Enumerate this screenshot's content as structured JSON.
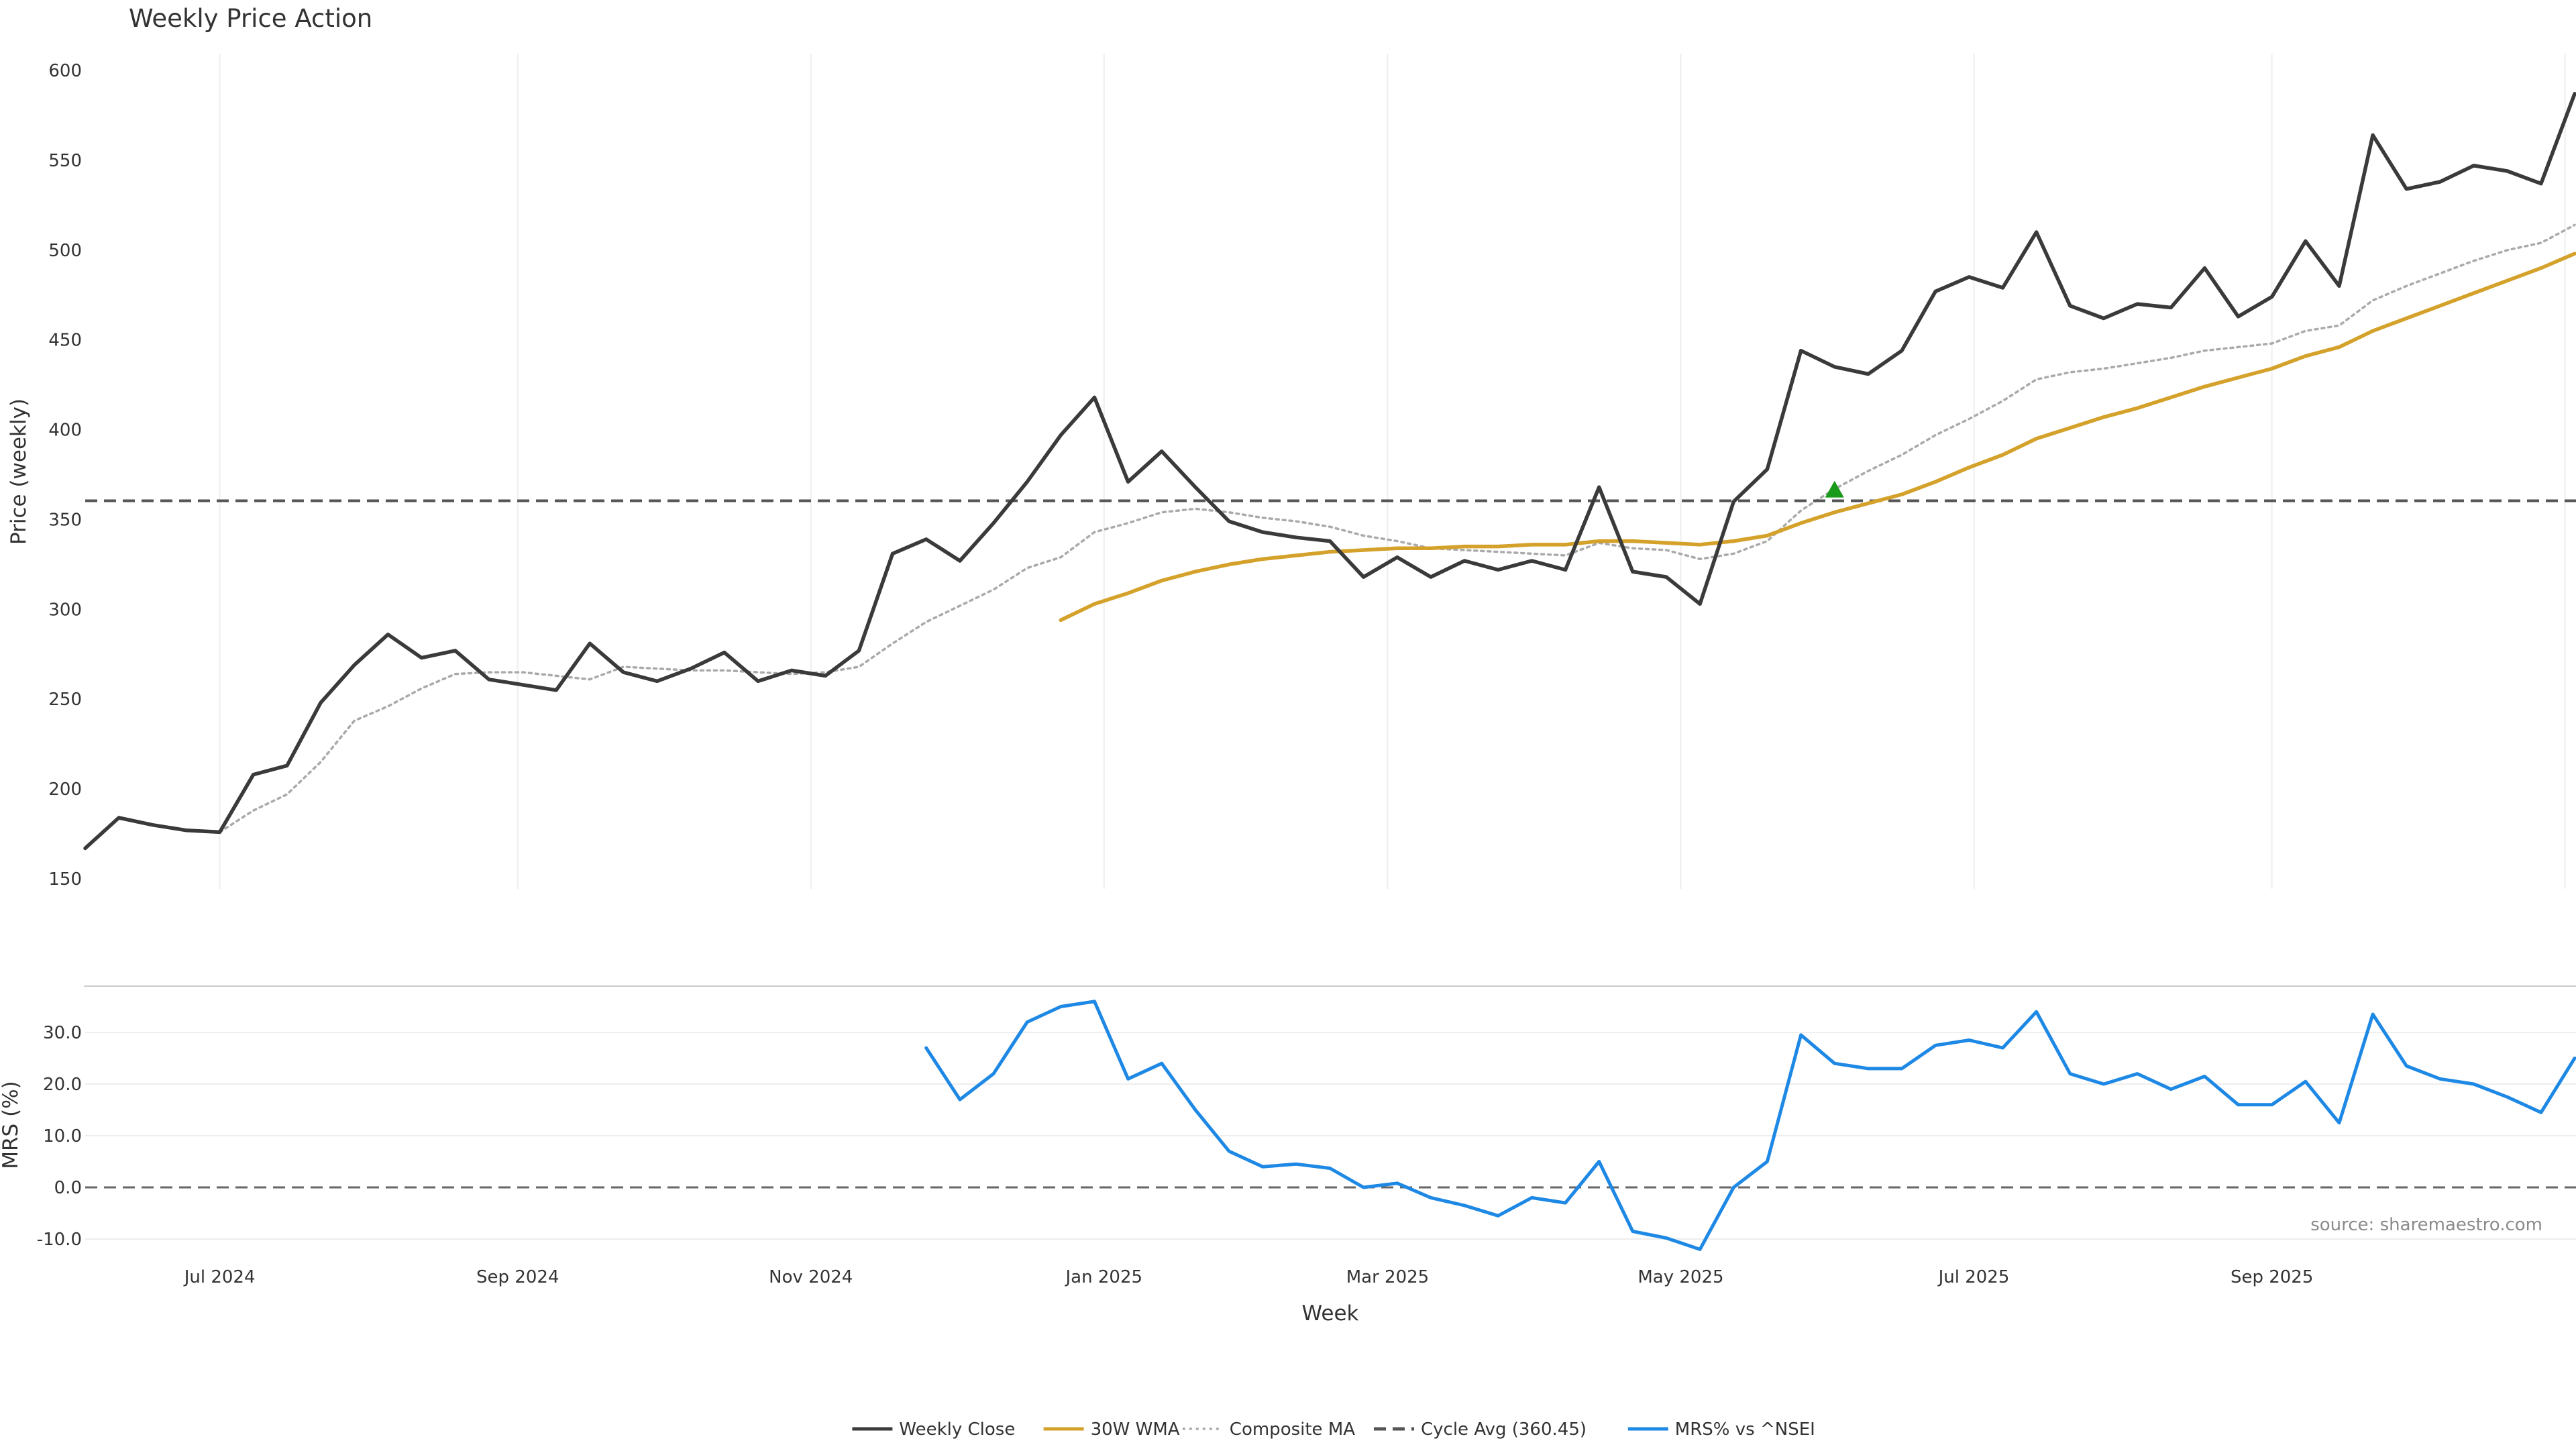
{
  "colors": {
    "weekly_close": "#3a3a3a",
    "wma30": "#d4a12a",
    "composite_ma": "#aaaaaa",
    "cycle_avg": "#555555",
    "mrs": "#1e88e5",
    "signal_marker": "#1a9a1a",
    "grid": "#eeeeee"
  },
  "source_text": "source: sharemaestro.com",
  "chart_data": [
    {
      "id": "price",
      "type": "line",
      "title": "Weekly Price Action",
      "ylabel": "Price (weekly)",
      "ylim": [
        150,
        610
      ],
      "yticks": [
        150,
        200,
        250,
        300,
        350,
        400,
        450,
        500,
        550,
        600
      ],
      "grid": "vertical",
      "x_start": "2024-06-03",
      "x_step_days": 7,
      "series": [
        {
          "name": "Weekly Close",
          "key": "weekly_close",
          "style": "solid",
          "values": [
            167,
            184,
            180,
            177,
            176,
            208,
            213,
            248,
            269,
            286,
            273,
            277,
            261,
            258,
            255,
            281,
            265,
            260,
            267,
            276,
            260,
            266,
            263,
            277,
            331,
            339,
            327,
            348,
            371,
            397,
            418,
            371,
            388,
            368,
            349,
            343,
            340,
            338,
            318,
            329,
            318,
            327,
            322,
            327,
            322,
            368,
            321,
            318,
            303,
            360,
            378,
            444,
            435,
            431,
            444,
            477,
            485,
            479,
            510,
            469,
            462,
            470,
            468,
            490,
            463,
            474,
            505,
            480,
            564,
            534,
            538,
            547,
            544,
            537,
            587
          ]
        },
        {
          "name": "30W WMA",
          "key": "wma30",
          "style": "solid",
          "values": [
            null,
            null,
            null,
            null,
            null,
            null,
            null,
            null,
            null,
            null,
            null,
            null,
            null,
            null,
            null,
            null,
            null,
            null,
            null,
            null,
            null,
            null,
            null,
            null,
            null,
            null,
            null,
            null,
            null,
            294,
            303,
            309,
            316,
            321,
            325,
            328,
            330,
            332,
            333,
            334,
            334,
            335,
            335,
            336,
            336,
            338,
            338,
            337,
            336,
            338,
            341,
            348,
            354,
            359,
            364,
            371,
            379,
            386,
            395,
            401,
            407,
            412,
            418,
            424,
            429,
            434,
            441,
            446,
            455,
            462,
            469,
            476,
            483,
            490,
            498
          ]
        },
        {
          "name": "Composite MA",
          "key": "composite_ma",
          "style": "dotted",
          "values": [
            null,
            null,
            null,
            null,
            176,
            188,
            197,
            215,
            238,
            246,
            256,
            264,
            265,
            265,
            263,
            261,
            268,
            267,
            266,
            266,
            265,
            264,
            265,
            268,
            281,
            293,
            302,
            311,
            323,
            329,
            343,
            348,
            354,
            356,
            354,
            351,
            349,
            346,
            341,
            338,
            334,
            333,
            332,
            331,
            330,
            337,
            334,
            333,
            328,
            331,
            338,
            355,
            367,
            377,
            386,
            397,
            406,
            416,
            428,
            432,
            434,
            437,
            440,
            444,
            446,
            448,
            455,
            458,
            472,
            480,
            487,
            494,
            500,
            504,
            514
          ]
        },
        {
          "name": "Cycle Avg (360.45)",
          "key": "cycle_avg",
          "style": "dashed",
          "constant": 360.45
        }
      ],
      "markers": [
        {
          "label": "signal",
          "type": "triangle-up",
          "x_index": 52,
          "y": 366
        }
      ]
    },
    {
      "id": "mrs",
      "type": "line",
      "ylabel": "MRS (%)",
      "xlabel": "Week",
      "ylim": [
        -12,
        38
      ],
      "yticks": [
        -10,
        0,
        10,
        20,
        30
      ],
      "ytick_labels": [
        "-10.0",
        "0.0",
        "10.0",
        "20.0",
        "30.0"
      ],
      "zero_line": true,
      "series": [
        {
          "name": "MRS% vs ^NSEI",
          "key": "mrs",
          "style": "solid",
          "values": [
            null,
            null,
            null,
            null,
            null,
            null,
            null,
            null,
            null,
            null,
            null,
            null,
            null,
            null,
            null,
            null,
            null,
            null,
            null,
            null,
            null,
            null,
            null,
            null,
            null,
            27,
            17,
            22,
            32,
            35,
            36,
            21,
            24,
            15,
            7,
            4,
            4.5,
            3.7,
            0,
            0.8,
            -2,
            -3.5,
            -5.5,
            -2,
            -3,
            5,
            -8.5,
            -9.8,
            -12,
            0,
            5,
            29.5,
            24,
            23,
            23,
            27.5,
            28.5,
            27,
            34,
            22,
            20,
            22,
            19,
            21.5,
            16,
            16,
            20.5,
            12.5,
            33.5,
            23.5,
            21,
            20,
            17.5,
            14.5,
            25
          ]
        }
      ]
    }
  ],
  "x_axis": {
    "label": "Week",
    "ticks": [
      {
        "label": "Jul 2024",
        "date": "2024-07-01"
      },
      {
        "label": "Sep 2024",
        "date": "2024-09-01"
      },
      {
        "label": "Nov 2024",
        "date": "2024-11-01"
      },
      {
        "label": "Jan 2025",
        "date": "2025-01-01"
      },
      {
        "label": "Mar 2025",
        "date": "2025-03-01"
      },
      {
        "label": "May 2025",
        "date": "2025-05-01"
      },
      {
        "label": "Jul 2025",
        "date": "2025-07-01"
      },
      {
        "label": "Sep 2025",
        "date": "2025-09-01"
      },
      {
        "label": "",
        "date": "2025-11-01"
      }
    ]
  },
  "legend": {
    "placement": "bottom-center",
    "items": [
      {
        "label": "Weekly Close",
        "key": "weekly_close",
        "style": "solid"
      },
      {
        "label": "30W WMA",
        "key": "wma30",
        "style": "solid"
      },
      {
        "label": "Composite MA",
        "key": "composite_ma",
        "style": "dotted"
      },
      {
        "label": "Cycle Avg (360.45)",
        "key": "cycle_avg",
        "style": "dashed"
      },
      {
        "label": "MRS% vs ^NSEI",
        "key": "mrs",
        "style": "solid"
      }
    ]
  }
}
